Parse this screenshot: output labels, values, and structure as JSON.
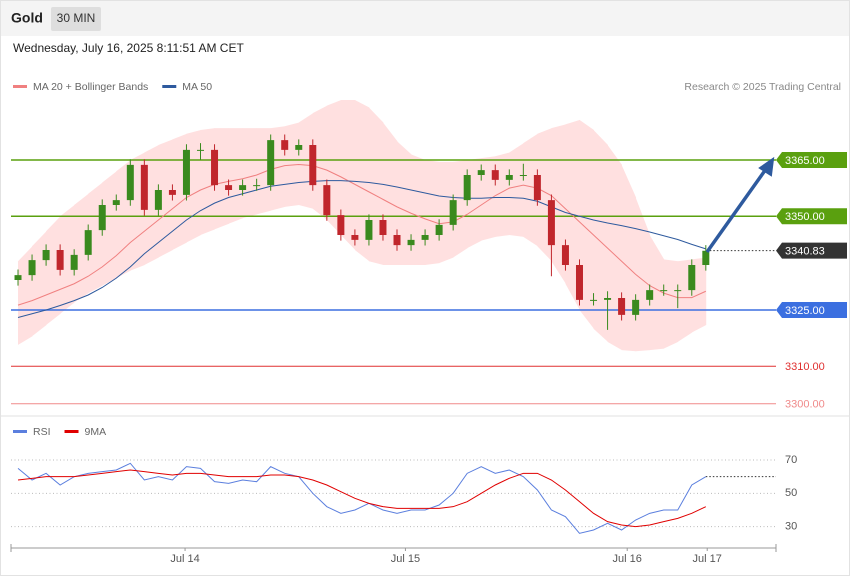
{
  "header": {
    "title": "Gold",
    "timeframe": "30 MIN",
    "timestamp": "Wednesday, July 16, 2025 8:11:51 AM CET"
  },
  "chart_data": [
    {
      "type": "candlestick",
      "credit": "Research © 2025 Trading Central",
      "up_color": "#3a8a1e",
      "down_color": "#c0262c",
      "band_color": "#ffe0e0",
      "xlim": [
        -0.5,
        54
      ],
      "ylim": [
        3297,
        3385
      ],
      "candles": [
        [
          3333.0,
          3335.8,
          3331.5,
          3334.3
        ],
        [
          3334.3,
          3339.8,
          3332.8,
          3338.3
        ],
        [
          3338.3,
          3342.5,
          3336.8,
          3341.0
        ],
        [
          3341.0,
          3342.5,
          3334.2,
          3335.7
        ],
        [
          3335.7,
          3341.2,
          3334.2,
          3339.7
        ],
        [
          3339.7,
          3347.8,
          3338.2,
          3346.3
        ],
        [
          3346.3,
          3354.5,
          3344.8,
          3353.0
        ],
        [
          3353.0,
          3355.8,
          3351.5,
          3354.3
        ],
        [
          3354.3,
          3365.2,
          3352.8,
          3363.7
        ],
        [
          3363.7,
          3365.2,
          3350.2,
          3351.7
        ],
        [
          3351.7,
          3358.5,
          3350.2,
          3357.0
        ],
        [
          3357.0,
          3358.5,
          3354.2,
          3355.7
        ],
        [
          3355.7,
          3369.2,
          3354.2,
          3367.7
        ],
        [
          3367.7,
          3369.5,
          3365.0,
          3367.7
        ],
        [
          3367.7,
          3369.2,
          3356.8,
          3358.3
        ],
        [
          3358.3,
          3359.8,
          3355.5,
          3357.0
        ],
        [
          3357.0,
          3359.8,
          3355.5,
          3358.3
        ],
        [
          3358.3,
          3360.0,
          3356.8,
          3358.3
        ],
        [
          3358.3,
          3371.8,
          3356.8,
          3370.3
        ],
        [
          3370.3,
          3371.8,
          3366.2,
          3367.7
        ],
        [
          3367.7,
          3370.5,
          3366.2,
          3369.0
        ],
        [
          3369.0,
          3370.5,
          3356.8,
          3358.3
        ],
        [
          3358.3,
          3359.8,
          3348.8,
          3350.3
        ],
        [
          3350.3,
          3351.8,
          3343.5,
          3345.0
        ],
        [
          3345.0,
          3346.5,
          3342.2,
          3343.7
        ],
        [
          3343.7,
          3350.5,
          3342.2,
          3349.0
        ],
        [
          3349.0,
          3350.5,
          3343.5,
          3345.0
        ],
        [
          3345.0,
          3346.5,
          3340.8,
          3342.3
        ],
        [
          3342.3,
          3345.2,
          3340.8,
          3343.7
        ],
        [
          3343.7,
          3346.5,
          3342.2,
          3345.0
        ],
        [
          3345.0,
          3349.2,
          3343.5,
          3347.7
        ],
        [
          3347.7,
          3355.8,
          3346.2,
          3354.3
        ],
        [
          3354.3,
          3362.5,
          3352.8,
          3361.0
        ],
        [
          3361.0,
          3363.8,
          3359.5,
          3362.3
        ],
        [
          3362.3,
          3363.8,
          3358.2,
          3359.7
        ],
        [
          3359.7,
          3362.5,
          3358.2,
          3361.0
        ],
        [
          3361.0,
          3364.0,
          3359.5,
          3361.0
        ],
        [
          3361.0,
          3362.5,
          3352.8,
          3354.3
        ],
        [
          3354.3,
          3355.8,
          3334.0,
          3342.3
        ],
        [
          3342.3,
          3343.8,
          3335.5,
          3337.0
        ],
        [
          3337.0,
          3338.5,
          3326.2,
          3327.7
        ],
        [
          3327.7,
          3329.5,
          3326.2,
          3327.7
        ],
        [
          3327.7,
          3330.0,
          3319.7,
          3328.2
        ],
        [
          3328.2,
          3329.7,
          3322.2,
          3323.7
        ],
        [
          3323.7,
          3329.2,
          3322.2,
          3327.7
        ],
        [
          3327.7,
          3331.8,
          3326.2,
          3330.3
        ],
        [
          3330.3,
          3331.8,
          3328.8,
          3330.3
        ],
        [
          3330.3,
          3331.8,
          3325.5,
          3330.3
        ],
        [
          3330.3,
          3338.5,
          3328.8,
          3337.0
        ],
        [
          3337.0,
          3342.3,
          3335.5,
          3340.8
        ]
      ],
      "series": [
        {
          "name": "MA 20 + Bollinger Bands",
          "color": "#f08080",
          "values": [
            3326.3,
            3327.5,
            3329,
            3330.5,
            3332,
            3334,
            3336.5,
            3339.5,
            3343,
            3346,
            3349,
            3352,
            3355,
            3357,
            3358.5,
            3359.3,
            3360,
            3361,
            3362.5,
            3363.5,
            3363.8,
            3363.5,
            3362.3,
            3360.5,
            3358.5,
            3356.5,
            3354.5,
            3352.5,
            3350.8,
            3349.3,
            3348,
            3348.5,
            3350.5,
            3353,
            3355.5,
            3357.5,
            3358.3,
            3357.5,
            3355.5,
            3352,
            3348.5,
            3345,
            3341.5,
            3338,
            3334.5,
            3331.5,
            3329.5,
            3328.3,
            3328.3,
            3330
          ],
          "upper": [
            3338,
            3342,
            3346,
            3350,
            3353,
            3356,
            3359,
            3362,
            3365,
            3367,
            3369,
            3370.5,
            3372,
            3373,
            3373.5,
            3373.5,
            3373.5,
            3373.5,
            3373.5,
            3374,
            3375,
            3377.5,
            3379.5,
            3381,
            3381,
            3379,
            3375,
            3370,
            3366.5,
            3365,
            3364.5,
            3364.5,
            3365,
            3365.5,
            3366,
            3367,
            3369.5,
            3372,
            3373.5,
            3374.5,
            3375.7,
            3373,
            3369,
            3363.7,
            3355,
            3345,
            3338.5,
            3338,
            3338.5,
            3339
          ],
          "lower": [
            3315.7,
            3318,
            3321,
            3324,
            3327,
            3329.5,
            3331.5,
            3333.5,
            3335.5,
            3337,
            3339,
            3341,
            3343,
            3345,
            3346.5,
            3348,
            3349.5,
            3350.5,
            3351.5,
            3352.5,
            3353,
            3352,
            3349,
            3345,
            3341,
            3338,
            3337,
            3337,
            3337,
            3337,
            3337.5,
            3339,
            3341.5,
            3343.5,
            3344.5,
            3345,
            3344.5,
            3342,
            3338,
            3332,
            3325,
            3320,
            3316.5,
            3314.3,
            3314,
            3314.3,
            3314.7,
            3316.5,
            3319,
            3321
          ]
        },
        {
          "name": "MA 50",
          "color": "#2e5a9e",
          "values": [
            3323.0,
            3324.0,
            3325.0,
            3326.2,
            3327.5,
            3329.0,
            3331.0,
            3333.5,
            3336.5,
            3340.0,
            3343.0,
            3346.0,
            3349.0,
            3351.5,
            3353.5,
            3355.0,
            3356.0,
            3357.0,
            3358.0,
            3358.5,
            3359.0,
            3359.3,
            3359.5,
            3359.5,
            3359.3,
            3359.0,
            3358.5,
            3357.8,
            3357.0,
            3356.2,
            3355.4,
            3355.0,
            3354.8,
            3354.8,
            3355.0,
            3355.0,
            3354.8,
            3354.0,
            3352.5,
            3351.0,
            3350.0,
            3349.0,
            3348.2,
            3347.5,
            3346.7,
            3345.8,
            3344.8,
            3343.8,
            3342.5,
            3341.3
          ]
        }
      ],
      "levels": [
        {
          "value": 3365,
          "label": "3365.00",
          "color": "#5aa00f",
          "style": "box"
        },
        {
          "value": 3350,
          "label": "3350.00",
          "color": "#5aa00f",
          "style": "box"
        },
        {
          "value": 3325,
          "label": "3325.00",
          "color": "#3b6fe0",
          "style": "box"
        },
        {
          "value": 3310,
          "label": "3310.00",
          "color": "#e03030",
          "style": "text"
        },
        {
          "value": 3300,
          "label": "3300.00",
          "color": "#f08a8a",
          "style": "text"
        }
      ],
      "last_price": {
        "value": 3340.83,
        "color": "#333333"
      }
    },
    {
      "type": "line",
      "xlim": [
        -0.5,
        54
      ],
      "ylim": [
        19,
        82
      ],
      "yticks": [
        30,
        50,
        70
      ],
      "xticks": [
        {
          "value": 11.9,
          "label": "Jul 14"
        },
        {
          "value": 27.6,
          "label": "Jul 15"
        },
        {
          "value": 43.4,
          "label": "Jul 16"
        },
        {
          "value": 49.1,
          "label": "Jul 17"
        }
      ],
      "series": [
        {
          "name": "RSI",
          "color": "#5b7fde",
          "values": [
            65,
            58,
            62,
            55,
            60,
            62,
            63,
            64,
            68,
            58,
            60,
            58,
            66,
            65,
            57,
            56,
            58,
            57,
            66,
            62,
            60,
            50,
            42,
            38,
            40,
            44,
            40,
            38,
            40,
            40,
            43,
            50,
            62,
            66,
            62,
            64,
            60,
            52,
            40,
            36,
            26,
            28,
            32,
            28,
            34,
            38,
            40,
            40,
            55,
            60
          ]
        },
        {
          "name": "9MA",
          "color": "#e00000",
          "values": [
            58,
            59,
            60,
            60,
            60,
            61,
            62,
            63,
            64,
            63,
            62,
            61,
            62,
            62,
            61,
            60,
            60,
            60,
            61,
            61,
            60,
            58,
            55,
            51,
            47,
            44,
            42,
            41,
            41,
            41,
            41,
            42,
            45,
            50,
            55,
            59,
            62,
            62,
            58,
            52,
            45,
            38,
            33,
            31,
            30,
            31,
            33,
            35,
            38,
            42
          ]
        }
      ]
    }
  ]
}
